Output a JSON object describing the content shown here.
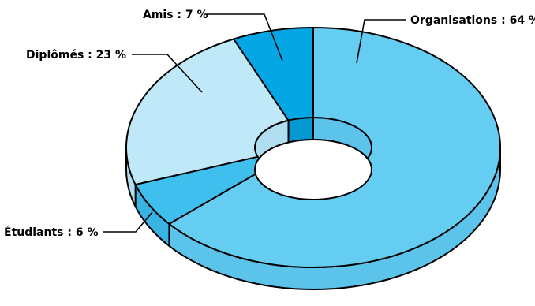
{
  "chart_data": {
    "type": "pie",
    "style": "3d-donut",
    "legend": "none",
    "title": "",
    "slices": [
      {
        "label": "Organisations",
        "value": 64,
        "display": "Organisations : 64 %",
        "color": "#66cdf2",
        "side_color": "#5cc3ea"
      },
      {
        "label": "Étudiants",
        "value": 6,
        "display": "Étudiants : 6 %",
        "color": "#3fbfee",
        "side_color": "#38b3e2"
      },
      {
        "label": "Diplômés",
        "value": 23,
        "display": "Diplômés : 23 %",
        "color": "#bfe8f9",
        "side_color": "#b1ddf0"
      },
      {
        "label": "Amis",
        "value": 7,
        "display": "Amis : 7 %",
        "color": "#04a6e4",
        "side_color": "#0498d2"
      }
    ]
  }
}
